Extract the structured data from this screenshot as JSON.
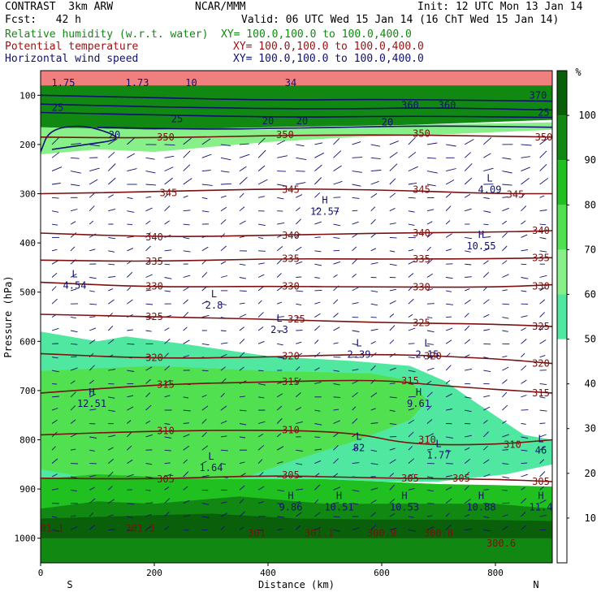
{
  "header": {
    "model_line": "CONTRAST  3km ARW",
    "center": "NCAR/MMM",
    "init": "Init: 12 UTC Mon 13 Jan 14",
    "fcst": "Fcst:   42 h",
    "valid": "Valid: 06 UTC Wed 15 Jan 14 (16 ChT Wed 15 Jan 14)"
  },
  "fields": [
    {
      "name": "Relative humidity (w.r.t. water)",
      "xy": "XY= 100.0,100.0 to 100.0,400.0",
      "color": "#118811"
    },
    {
      "name": "Potential temperature",
      "xy": "XY= 100.0,100.0 to 100.0,400.0",
      "color": "#991111"
    },
    {
      "name": "Horizontal wind speed",
      "xy": "XY= 100.0,100.0 to 100.0,400.0",
      "color": "#101070"
    }
  ],
  "chart_data": {
    "type": "heatmap",
    "xlabel": "Distance (km)",
    "ylabel": "Pressure (hPa)",
    "xlim": [
      0,
      900
    ],
    "ylim": [
      1050,
      50
    ],
    "x_ticks": [
      "0",
      "200",
      "400",
      "600",
      "800"
    ],
    "y_ticks": [
      "100",
      "200",
      "300",
      "400",
      "500",
      "600",
      "700",
      "800",
      "900",
      "1000"
    ],
    "x_end_labels": {
      "left": "S",
      "right": "N"
    },
    "colorbar": {
      "unit": "%",
      "labels": [
        "10",
        "20",
        "30",
        "40",
        "50",
        "60",
        "70",
        "80",
        "90",
        "100"
      ],
      "levels": [
        0,
        50,
        60,
        70,
        80,
        90,
        100,
        110
      ],
      "colors": [
        "#ffffff",
        "#50e8a0",
        "#88f088",
        "#50e050",
        "#20c020",
        "#118811",
        "#0a600a",
        "#f08080"
      ]
    },
    "rh_regions": [
      {
        "level": 90,
        "points": [
          [
            0,
            60
          ],
          [
            900,
            60
          ],
          [
            900,
            150
          ],
          [
            650,
            160
          ],
          [
            400,
            165
          ],
          [
            200,
            170
          ],
          [
            0,
            165
          ]
        ]
      },
      {
        "level": 60,
        "points": [
          [
            0,
            165
          ],
          [
            200,
            170
          ],
          [
            400,
            170
          ],
          [
            650,
            160
          ],
          [
            900,
            155
          ],
          [
            900,
            170
          ],
          [
            700,
            180
          ],
          [
            550,
            185
          ],
          [
            400,
            195
          ],
          [
            300,
            205
          ],
          [
            200,
            215
          ],
          [
            100,
            210
          ],
          [
            0,
            220
          ]
        ]
      },
      {
        "level": 50,
        "points": [
          [
            0,
            580
          ],
          [
            100,
            600
          ],
          [
            150,
            590
          ],
          [
            250,
            605
          ],
          [
            400,
            630
          ],
          [
            550,
            640
          ],
          [
            650,
            650
          ],
          [
            710,
            680
          ],
          [
            760,
            720
          ],
          [
            850,
            790
          ],
          [
            900,
            800
          ],
          [
            900,
            850
          ],
          [
            820,
            870
          ],
          [
            700,
            885
          ],
          [
            600,
            885
          ],
          [
            500,
            880
          ],
          [
            400,
            880
          ],
          [
            300,
            890
          ],
          [
            200,
            890
          ],
          [
            100,
            895
          ],
          [
            0,
            880
          ]
        ]
      },
      {
        "level": 70,
        "points": [
          [
            0,
            660
          ],
          [
            200,
            650
          ],
          [
            400,
            660
          ],
          [
            580,
            665
          ],
          [
            650,
            680
          ],
          [
            680,
            720
          ],
          [
            650,
            760
          ],
          [
            560,
            800
          ],
          [
            450,
            840
          ],
          [
            350,
            880
          ],
          [
            250,
            890
          ],
          [
            100,
            880
          ],
          [
            0,
            860
          ]
        ]
      },
      {
        "level": 80,
        "points": [
          [
            0,
            880
          ],
          [
            100,
            870
          ],
          [
            200,
            875
          ],
          [
            300,
            880
          ],
          [
            400,
            880
          ],
          [
            500,
            880
          ],
          [
            600,
            885
          ],
          [
            700,
            890
          ],
          [
            800,
            892
          ],
          [
            900,
            895
          ],
          [
            900,
            1050
          ],
          [
            0,
            1050
          ]
        ]
      },
      {
        "level": 90,
        "points": [
          [
            0,
            940
          ],
          [
            100,
            925
          ],
          [
            200,
            930
          ],
          [
            350,
            915
          ],
          [
            500,
            930
          ],
          [
            650,
            930
          ],
          [
            800,
            930
          ],
          [
            900,
            940
          ],
          [
            900,
            1050
          ],
          [
            0,
            1050
          ]
        ]
      },
      {
        "level": 100,
        "points": [
          [
            0,
            960
          ],
          [
            150,
            955
          ],
          [
            300,
            950
          ],
          [
            450,
            960
          ],
          [
            600,
            962
          ],
          [
            750,
            962
          ],
          [
            900,
            965
          ],
          [
            900,
            1000
          ],
          [
            0,
            1000
          ]
        ]
      },
      {
        "level": 110,
        "points": [
          [
            0,
            50
          ],
          [
            900,
            50
          ],
          [
            900,
            80
          ],
          [
            0,
            80
          ]
        ]
      }
    ],
    "isentropes": [
      {
        "theta": 350,
        "points": [
          [
            0,
            185
          ],
          [
            200,
            187
          ],
          [
            400,
            182
          ],
          [
            600,
            180
          ],
          [
            800,
            183
          ],
          [
            900,
            185
          ]
        ]
      },
      {
        "theta": 345,
        "points": [
          [
            0,
            300
          ],
          [
            200,
            296
          ],
          [
            400,
            290
          ],
          [
            600,
            292
          ],
          [
            800,
            300
          ],
          [
            900,
            300
          ]
        ]
      },
      {
        "theta": 340,
        "points": [
          [
            0,
            380
          ],
          [
            200,
            388
          ],
          [
            400,
            385
          ],
          [
            600,
            380
          ],
          [
            800,
            378
          ],
          [
            900,
            375
          ]
        ]
      },
      {
        "theta": 335,
        "points": [
          [
            0,
            435
          ],
          [
            200,
            438
          ],
          [
            400,
            432
          ],
          [
            600,
            433
          ],
          [
            800,
            432
          ],
          [
            900,
            430
          ]
        ]
      },
      {
        "theta": 330,
        "points": [
          [
            0,
            480
          ],
          [
            200,
            490
          ],
          [
            400,
            488
          ],
          [
            600,
            490
          ],
          [
            800,
            490
          ],
          [
            900,
            485
          ]
        ]
      },
      {
        "theta": 325,
        "points": [
          [
            0,
            545
          ],
          [
            200,
            550
          ],
          [
            400,
            555
          ],
          [
            600,
            562
          ],
          [
            800,
            565
          ],
          [
            900,
            570
          ]
        ]
      },
      {
        "theta": 320,
        "points": [
          [
            0,
            625
          ],
          [
            200,
            635
          ],
          [
            400,
            632
          ],
          [
            600,
            625
          ],
          [
            800,
            635
          ],
          [
            900,
            645
          ]
        ]
      },
      {
        "theta": 315,
        "points": [
          [
            0,
            705
          ],
          [
            200,
            688
          ],
          [
            400,
            682
          ],
          [
            600,
            678
          ],
          [
            700,
            690
          ],
          [
            900,
            705
          ]
        ]
      },
      {
        "theta": 310,
        "points": [
          [
            0,
            790
          ],
          [
            200,
            782
          ],
          [
            400,
            780
          ],
          [
            550,
            785
          ],
          [
            650,
            810
          ],
          [
            800,
            810
          ],
          [
            900,
            800
          ]
        ]
      },
      {
        "theta": 305,
        "points": [
          [
            0,
            878
          ],
          [
            200,
            880
          ],
          [
            400,
            872
          ],
          [
            600,
            878
          ],
          [
            800,
            880
          ],
          [
            900,
            885
          ]
        ]
      }
    ],
    "isentrope_labels": [
      {
        "text": "350",
        "x": 220,
        "y": 185
      },
      {
        "text": "350",
        "x": 430,
        "y": 180
      },
      {
        "text": "350",
        "x": 670,
        "y": 178
      },
      {
        "text": "350",
        "x": 885,
        "y": 185
      },
      {
        "text": "345",
        "x": 225,
        "y": 298
      },
      {
        "text": "345",
        "x": 440,
        "y": 292
      },
      {
        "text": "345",
        "x": 670,
        "y": 292
      },
      {
        "text": "345",
        "x": 835,
        "y": 302
      },
      {
        "text": "340",
        "x": 200,
        "y": 388
      },
      {
        "text": "340",
        "x": 440,
        "y": 385
      },
      {
        "text": "340",
        "x": 670,
        "y": 380
      },
      {
        "text": "340",
        "x": 880,
        "y": 375
      },
      {
        "text": "335",
        "x": 200,
        "y": 438
      },
      {
        "text": "335",
        "x": 440,
        "y": 432
      },
      {
        "text": "335",
        "x": 670,
        "y": 433
      },
      {
        "text": "335",
        "x": 880,
        "y": 430
      },
      {
        "text": "330",
        "x": 200,
        "y": 488
      },
      {
        "text": "330",
        "x": 440,
        "y": 488
      },
      {
        "text": "330",
        "x": 670,
        "y": 490
      },
      {
        "text": "330",
        "x": 880,
        "y": 488
      },
      {
        "text": "325",
        "x": 200,
        "y": 550
      },
      {
        "text": "325",
        "x": 450,
        "y": 555
      },
      {
        "text": "325",
        "x": 670,
        "y": 562
      },
      {
        "text": "325",
        "x": 880,
        "y": 570
      },
      {
        "text": "320",
        "x": 200,
        "y": 633
      },
      {
        "text": "320",
        "x": 440,
        "y": 630
      },
      {
        "text": "320",
        "x": 690,
        "y": 630
      },
      {
        "text": "320",
        "x": 880,
        "y": 645
      },
      {
        "text": "315",
        "x": 220,
        "y": 688
      },
      {
        "text": "315",
        "x": 440,
        "y": 682
      },
      {
        "text": "315",
        "x": 650,
        "y": 680
      },
      {
        "text": "315",
        "x": 880,
        "y": 705
      },
      {
        "text": "310",
        "x": 220,
        "y": 782
      },
      {
        "text": "310",
        "x": 440,
        "y": 780
      },
      {
        "text": "310",
        "x": 680,
        "y": 800
      },
      {
        "text": "310",
        "x": 830,
        "y": 810
      },
      {
        "text": "305",
        "x": 220,
        "y": 880
      },
      {
        "text": "305",
        "x": 440,
        "y": 872
      },
      {
        "text": "305",
        "x": 650,
        "y": 878
      },
      {
        "text": "305",
        "x": 740,
        "y": 878
      },
      {
        "text": "305",
        "x": 880,
        "y": 885
      },
      {
        "text": "301.1",
        "x": 15,
        "y": 980
      },
      {
        "text": "301.3",
        "x": 175,
        "y": 980
      },
      {
        "text": "301",
        "x": 380,
        "y": 990
      },
      {
        "text": "301.1",
        "x": 490,
        "y": 990
      },
      {
        "text": "300.9",
        "x": 600,
        "y": 990
      },
      {
        "text": "300.8",
        "x": 700,
        "y": 990
      },
      {
        "text": "300.6",
        "x": 810,
        "y": 1010
      }
    ],
    "pressure_extrema": [
      {
        "kind": "H",
        "value": "12.57",
        "x": 500,
        "y": 330
      },
      {
        "kind": "L",
        "value": "4.09",
        "x": 790,
        "y": 285
      },
      {
        "kind": "H",
        "value": "10.55",
        "x": 775,
        "y": 400
      },
      {
        "kind": "L",
        "value": "4.54",
        "x": 60,
        "y": 480
      },
      {
        "kind": "L",
        "value": "2.8",
        "x": 305,
        "y": 520
      },
      {
        "kind": "L",
        "value": "2.3",
        "x": 420,
        "y": 570
      },
      {
        "kind": "L",
        "value": "2.39",
        "x": 560,
        "y": 620
      },
      {
        "kind": "L",
        "value": "2.15",
        "x": 680,
        "y": 620
      },
      {
        "kind": "H",
        "value": "12.51",
        "x": 90,
        "y": 720
      },
      {
        "kind": "H",
        "value": "9.61",
        "x": 665,
        "y": 720
      },
      {
        "kind": "L",
        "value": "82",
        "x": 560,
        "y": 810
      },
      {
        "kind": "L",
        "value": "1.77",
        "x": 700,
        "y": 825
      },
      {
        "kind": "L",
        "value": "46",
        "x": 880,
        "y": 815
      },
      {
        "kind": "L",
        "value": "1.64",
        "x": 300,
        "y": 850
      },
      {
        "kind": "H",
        "value": "9.86",
        "x": 440,
        "y": 930
      },
      {
        "kind": "H",
        "value": "10.51",
        "x": 525,
        "y": 930
      },
      {
        "kind": "H",
        "value": "10.53",
        "x": 640,
        "y": 930
      },
      {
        "kind": "H",
        "value": "10.88",
        "x": 775,
        "y": 930
      },
      {
        "kind": "H",
        "value": "11.4",
        "x": 880,
        "y": 930
      }
    ],
    "wind_labels": [
      {
        "text": "1.75",
        "x": 40,
        "y": 75
      },
      {
        "text": "1.73",
        "x": 170,
        "y": 75
      },
      {
        "text": "10",
        "x": 265,
        "y": 75
      },
      {
        "text": "34",
        "x": 440,
        "y": 75
      },
      {
        "text": "25",
        "x": 30,
        "y": 125
      },
      {
        "text": "25",
        "x": 240,
        "y": 148
      },
      {
        "text": "20",
        "x": 130,
        "y": 180
      },
      {
        "text": "20",
        "x": 400,
        "y": 152
      },
      {
        "text": "20",
        "x": 460,
        "y": 152
      },
      {
        "text": "20",
        "x": 610,
        "y": 155
      },
      {
        "text": "360",
        "x": 650,
        "y": 120
      },
      {
        "text": "360",
        "x": 715,
        "y": 120
      },
      {
        "text": "370",
        "x": 875,
        "y": 100
      },
      {
        "text": "25",
        "x": 885,
        "y": 135
      }
    ],
    "wind_contours": [
      [
        [
          0,
          100
        ],
        [
          200,
          105
        ],
        [
          400,
          110
        ],
        [
          600,
          108
        ],
        [
          900,
          112
        ]
      ],
      [
        [
          0,
          118
        ],
        [
          250,
          125
        ],
        [
          500,
          128
        ],
        [
          700,
          125
        ],
        [
          900,
          130
        ]
      ],
      [
        [
          0,
          135
        ],
        [
          200,
          140
        ],
        [
          450,
          145
        ],
        [
          650,
          142
        ],
        [
          900,
          145
        ]
      ],
      [
        [
          0,
          215
        ],
        [
          15,
          170
        ],
        [
          70,
          160
        ],
        [
          120,
          175
        ],
        [
          140,
          190
        ],
        [
          80,
          200
        ],
        [
          20,
          210
        ]
      ],
      [
        [
          100,
          165
        ],
        [
          300,
          170
        ],
        [
          500,
          165
        ],
        [
          700,
          162
        ],
        [
          900,
          165
        ]
      ]
    ]
  }
}
